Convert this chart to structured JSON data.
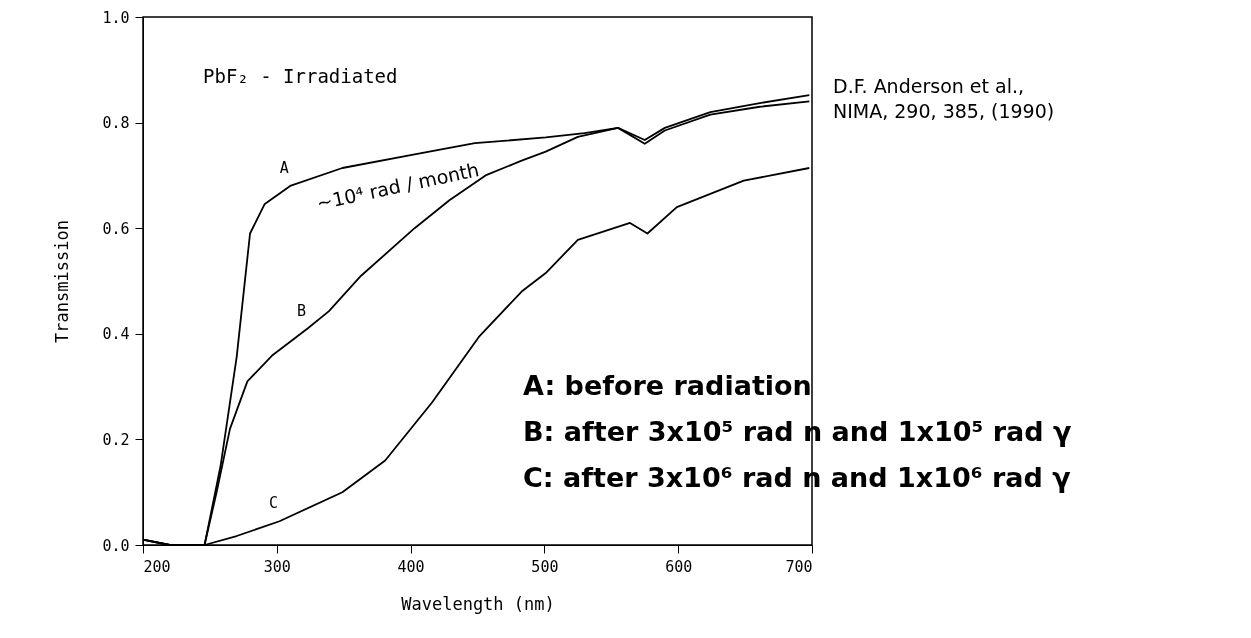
{
  "chart_data": {
    "type": "line",
    "title": "PbF₂ - Irradiated",
    "xlabel": "Wavelength (nm)",
    "ylabel": "Transmission",
    "xlim": [
      200,
      700
    ],
    "xticks": [
      200,
      300,
      400,
      500,
      600,
      700
    ],
    "ylim": [
      0,
      1
    ],
    "yticks": [
      {
        "value": 0,
        "label": "0.0"
      },
      0.2,
      0.4,
      0.6,
      0.8,
      {
        "value": 1,
        "label": "1.0"
      }
    ],
    "grid": false,
    "marker": "none",
    "line_style": "solid",
    "series": [
      {
        "name": "A",
        "color": "#000000",
        "x": [
          200,
          220,
          246,
          258,
          270,
          280,
          291,
          310,
          349,
          403,
          448,
          501,
          530,
          555,
          575,
          590,
          624,
          661,
          698
        ],
        "values": [
          0.01,
          0,
          0,
          0.15,
          0.356,
          0.59,
          0.646,
          0.68,
          0.714,
          0.74,
          0.761,
          0.772,
          0.78,
          0.79,
          0.767,
          0.79,
          0.82,
          0.837,
          0.852
        ]
      },
      {
        "name": "B",
        "color": "#000000",
        "x": [
          200,
          220,
          246,
          255,
          265,
          278,
          297,
          323,
          339,
          363,
          403,
          429,
          456,
          483,
          501,
          525,
          555,
          575,
          590,
          624,
          661,
          698
        ],
        "values": [
          0.01,
          0,
          0,
          0.1,
          0.22,
          0.31,
          0.36,
          0.41,
          0.443,
          0.51,
          0.6,
          0.653,
          0.7,
          0.728,
          0.745,
          0.773,
          0.79,
          0.76,
          0.785,
          0.815,
          0.83,
          0.84
        ]
      },
      {
        "name": "C",
        "color": "#000000",
        "x": [
          200,
          220,
          246,
          270,
          302,
          349,
          381,
          416,
          451,
          483,
          501,
          525,
          564,
          577,
          599,
          649,
          698
        ],
        "values": [
          0.01,
          0,
          0,
          0.017,
          0.045,
          0.1,
          0.16,
          0.27,
          0.394,
          0.48,
          0.515,
          0.578,
          0.61,
          0.59,
          0.64,
          0.69,
          0.714
        ]
      }
    ],
    "annotations": [
      "~10⁴ rad / month",
      "D.F. Anderson et al.,\nNIMA, 290, 385, (1990)",
      "A: before radiation",
      "B: after 3x10⁵ rad n and 1x10⁵ rad γ",
      "C: after 3x10⁶ rad n and 1x10⁶ rad γ"
    ]
  }
}
